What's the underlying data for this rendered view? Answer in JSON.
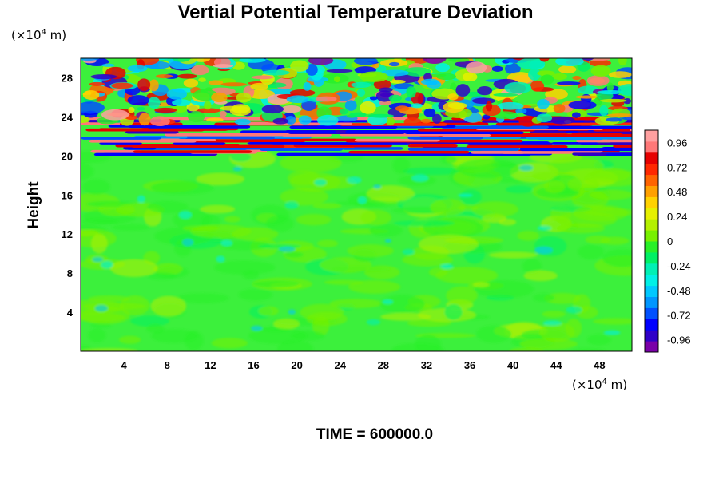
{
  "chart_data": {
    "type": "heatmap",
    "title": "Vertial Potential Temperature Deviation",
    "ylabel": "Height",
    "xlabel": "",
    "x_unit": {
      "prefix": "(×10",
      "exp": "4",
      "suffix": " m)"
    },
    "y_unit": {
      "prefix": "(×10",
      "exp": "4",
      "suffix": " m)"
    },
    "xlim": [
      0,
      51
    ],
    "ylim": [
      0,
      30
    ],
    "x_ticks": [
      "4",
      "8",
      "12",
      "16",
      "20",
      "24",
      "28",
      "32",
      "36",
      "40",
      "44",
      "48"
    ],
    "y_ticks": [
      "4",
      "8",
      "12",
      "16",
      "20",
      "24",
      "28"
    ],
    "x_tick_values": [
      4,
      8,
      12,
      16,
      20,
      24,
      28,
      32,
      36,
      40,
      44,
      48
    ],
    "y_tick_values": [
      4,
      8,
      12,
      16,
      20,
      24,
      28
    ],
    "colorbar": {
      "labels": [
        "0.96",
        "0.72",
        "0.48",
        "0.24",
        "0",
        "-0.24",
        "-0.48",
        "-0.72",
        "-0.96"
      ],
      "values": [
        0.96,
        0.72,
        0.48,
        0.24,
        0,
        -0.24,
        -0.48,
        -0.72,
        -0.96
      ],
      "range": [
        -1.08,
        1.08
      ],
      "colors": [
        "#7a00a8",
        "#3000c8",
        "#0000ff",
        "#0050ff",
        "#0096ff",
        "#00c8ff",
        "#00f0e6",
        "#00f0b4",
        "#00f064",
        "#28f028",
        "#78f000",
        "#b4f000",
        "#e6f000",
        "#ffd200",
        "#ffa000",
        "#ff6400",
        "#ff2800",
        "#e60000",
        "#ff7878",
        "#ffa0a0"
      ]
    },
    "regions": [
      {
        "y_range": [
          0,
          20
        ],
        "description_values": "near-zero field, mostly 0 to 0.12, with weak negative streaks around -0.2"
      },
      {
        "y_range": [
          20,
          24
        ],
        "description_values": "strong horizontal bands alternating between about -0.96 and 0.96"
      },
      {
        "y_range": [
          24,
          30
        ],
        "description_values": "turbulent blobs spanning the full range -0.96 to 0.96"
      }
    ]
  },
  "footer": {
    "time_label": "TIME = 600000.0"
  }
}
